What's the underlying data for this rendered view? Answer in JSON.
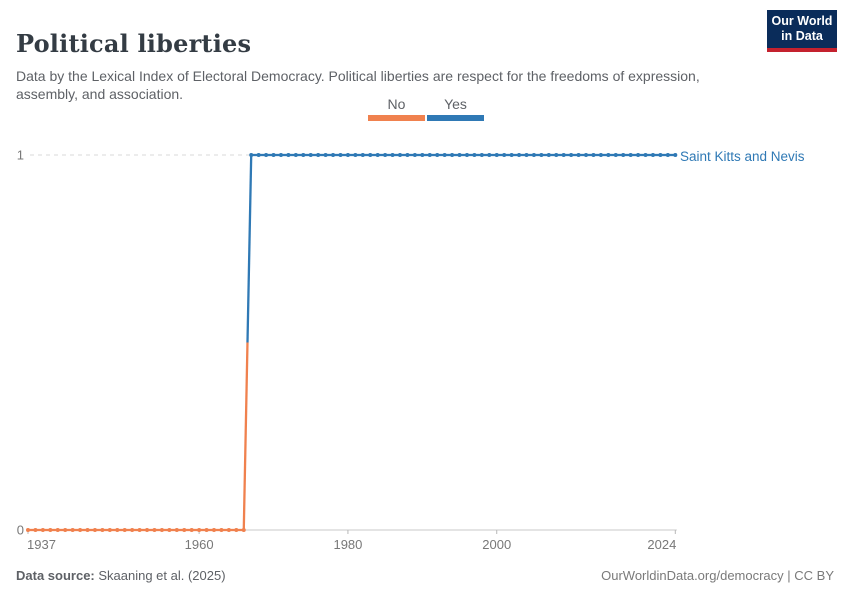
{
  "header": {
    "title": "Political liberties",
    "subtitle": "Data by the Lexical Index of Electoral Democracy. Political liberties are respect for the freedoms of expression, assembly, and association.",
    "logo": {
      "line1": "Our World",
      "line2": "in Data"
    }
  },
  "legend": {
    "items": [
      {
        "label": "No",
        "color": "#F0814E"
      },
      {
        "label": "Yes",
        "color": "#2F79B5"
      }
    ]
  },
  "chart_data": {
    "type": "line",
    "title": "Political liberties",
    "entity": "Saint Kitts and Nevis",
    "x_start": 1937,
    "x_end": 2024,
    "x_ticks": [
      1937,
      1960,
      1980,
      2000,
      2024
    ],
    "y_ticks": [
      0,
      1
    ],
    "ylim": [
      0,
      1
    ],
    "grid": "dashed gridline at y=1, solid axis at y=0",
    "legend": [
      "No",
      "Yes"
    ],
    "legend_position": "top-center",
    "colors": {
      "No": "#F0814E",
      "Yes": "#2F79B5"
    },
    "series": [
      {
        "name": "Saint Kitts and Nevis",
        "values": [
          0,
          0,
          0,
          0,
          0,
          0,
          0,
          0,
          0,
          0,
          0,
          0,
          0,
          0,
          0,
          0,
          0,
          0,
          0,
          0,
          0,
          0,
          0,
          0,
          0,
          0,
          0,
          0,
          0,
          0,
          1,
          1,
          1,
          1,
          1,
          1,
          1,
          1,
          1,
          1,
          1,
          1,
          1,
          1,
          1,
          1,
          1,
          1,
          1,
          1,
          1,
          1,
          1,
          1,
          1,
          1,
          1,
          1,
          1,
          1,
          1,
          1,
          1,
          1,
          1,
          1,
          1,
          1,
          1,
          1,
          1,
          1,
          1,
          1,
          1,
          1,
          1,
          1,
          1,
          1,
          1,
          1,
          1,
          1,
          1,
          1,
          1,
          1
        ]
      }
    ]
  },
  "footer": {
    "source_label": "Data source:",
    "source_value": " Skaaning et al. (2025)",
    "right": "OurWorldinData.org/democracy | CC BY"
  }
}
